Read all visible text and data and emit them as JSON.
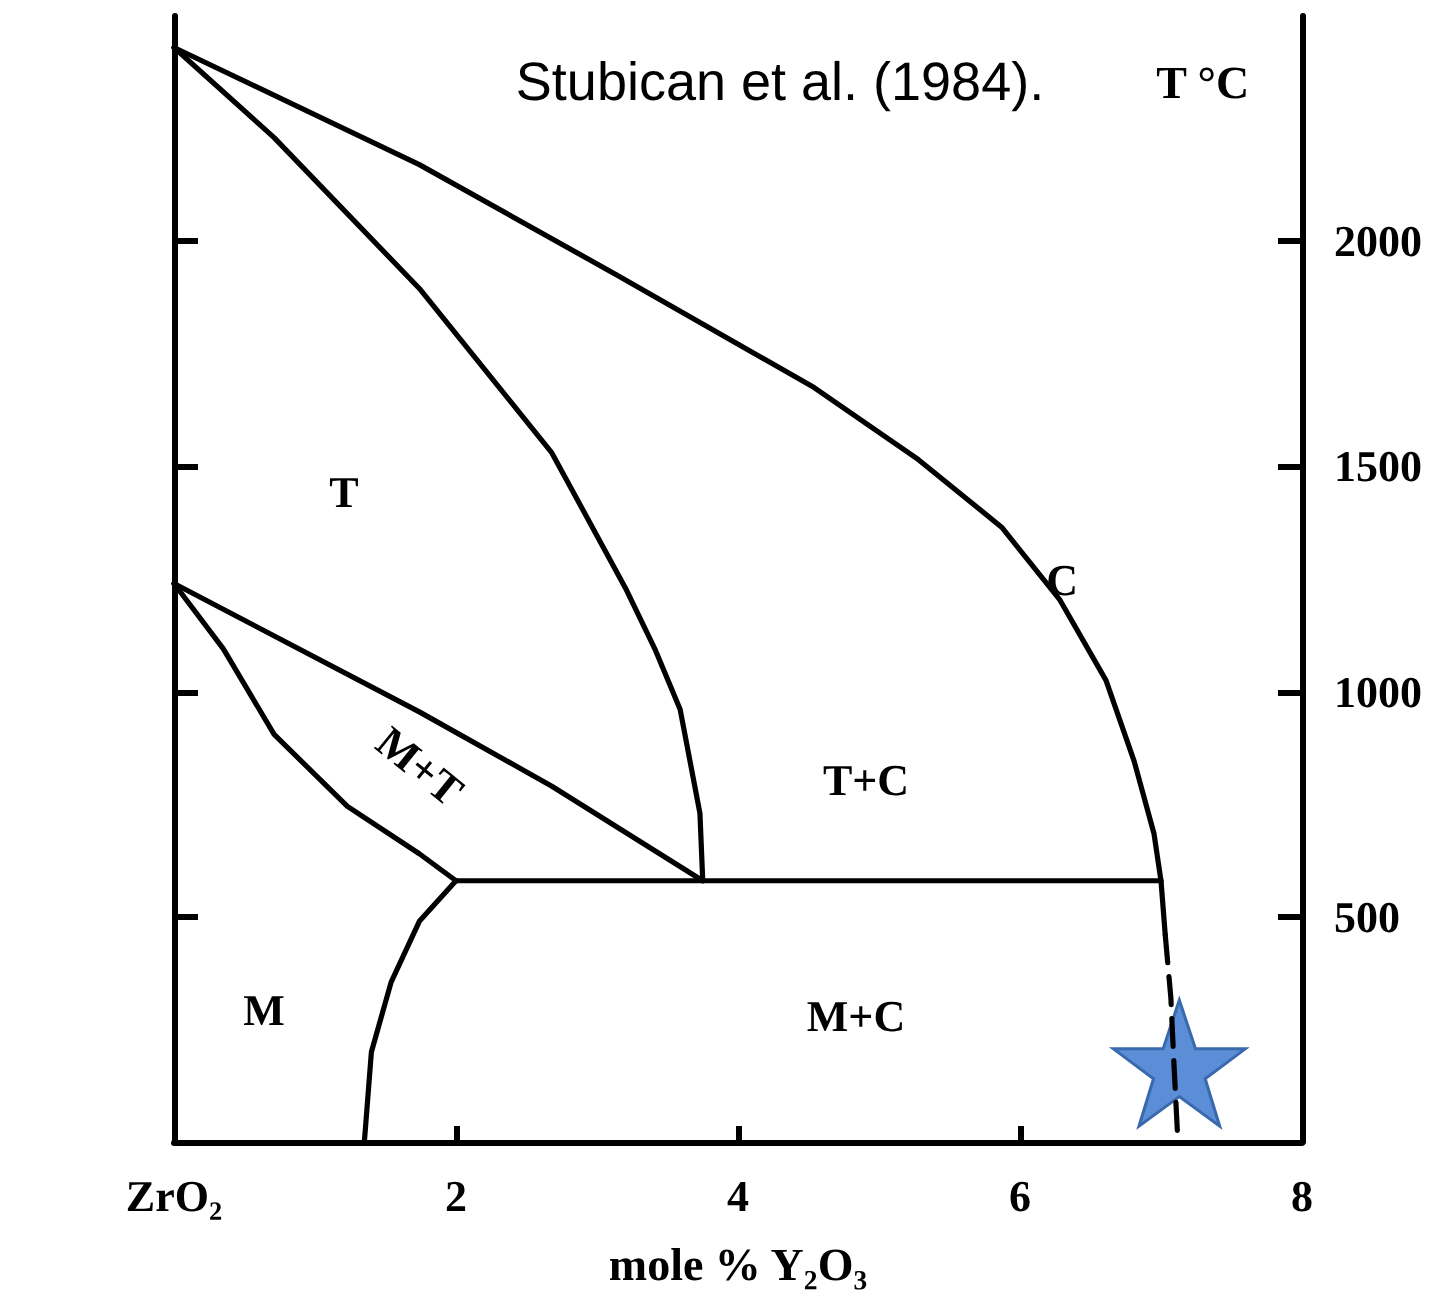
{
  "chart_data": {
    "type": "line",
    "xlabel": "mole % Y₂O₃",
    "ylabel": "T °C",
    "xlim": [
      0,
      8
    ],
    "xticks": [
      {
        "value": 0,
        "label": "ZrO₂"
      },
      2,
      4,
      6,
      8
    ],
    "ylim": [
      0,
      2500
    ],
    "yticks": [
      500,
      1000,
      1500,
      2000
    ],
    "marker": "none",
    "line_style": "solid",
    "grid": false,
    "series": [
      {
        "color": "#000000",
        "x": [
          0,
          1.74,
          3.14,
          4.54,
          5.28,
          5.87,
          6.28,
          6.61,
          6.81,
          6.95,
          7.0,
          7.03
        ],
        "values": [
          2430,
          2170,
          1925,
          1675,
          1515,
          1365,
          1205,
          1025,
          845,
          685,
          580,
          460
        ]
      },
      {
        "color": "#000000",
        "line_style": "dashed",
        "x": [
          7.03,
          7.07,
          7.09,
          7.12
        ],
        "values": [
          460,
          320,
          185,
          0
        ]
      },
      {
        "color": "#000000",
        "x": [
          0,
          0.71,
          1.74,
          2.68,
          3.21,
          3.41,
          3.59,
          3.73,
          3.75
        ],
        "values": [
          2430,
          2230,
          1895,
          1530,
          1225,
          1095,
          960,
          730,
          580
        ]
      },
      {
        "color": "#000000",
        "x": [
          2.0,
          7.0
        ],
        "values": [
          580,
          580
        ]
      },
      {
        "color": "#000000",
        "x": [
          0,
          1.74,
          2.68,
          3.75
        ],
        "values": [
          1240,
          955,
          790,
          580
        ]
      },
      {
        "color": "#000000",
        "x": [
          0,
          0.35,
          0.71,
          1.23,
          1.74,
          2.0
        ],
        "values": [
          1240,
          1095,
          905,
          745,
          640,
          580
        ]
      },
      {
        "color": "#000000",
        "x": [
          2.0,
          1.74,
          1.54,
          1.4,
          1.35
        ],
        "values": [
          580,
          490,
          355,
          200,
          0
        ]
      },
      {
        "type": "scatter",
        "marker": "star",
        "color": "#5b8ed6",
        "x": [
          7.13
        ],
        "values": [
          175
        ]
      }
    ],
    "annotations": [
      "Stubican et al. (1984).",
      "T",
      "C",
      "M+T",
      "T+C",
      "M",
      "M+C"
    ]
  }
}
